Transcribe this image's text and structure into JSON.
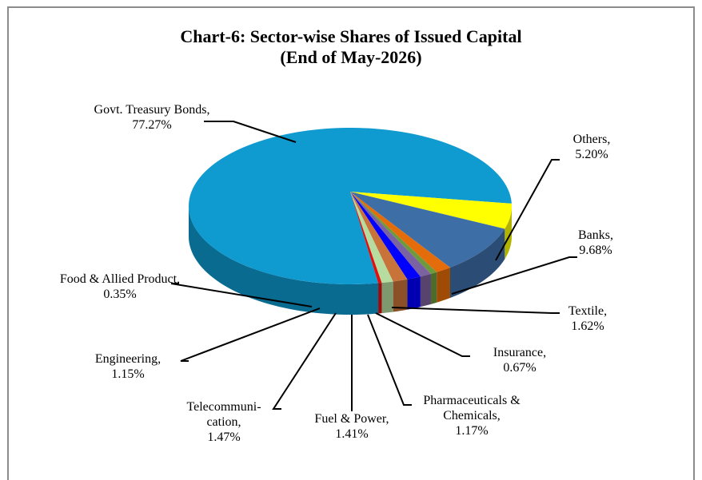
{
  "chart_data": {
    "type": "pie",
    "title": "Chart-6: Sector-wise Shares of Issued Capital",
    "subtitle": "(End of  May-2026)",
    "categories": [
      "Govt. Treasury Bonds,",
      "Others,",
      "Banks,",
      "Textile,",
      "Insurance,",
      "Pharmaceuticals & Chemicals,",
      "Fuel & Power,",
      "Telecommuni-cation,",
      "Engineering,",
      "Food & Allied Product,"
    ],
    "values": [
      77.27,
      5.2,
      9.68,
      1.62,
      0.67,
      1.17,
      1.41,
      1.47,
      1.15,
      0.35
    ],
    "value_labels": [
      "77.27%",
      "5.20%",
      "9.68%",
      "1.62%",
      "0.67%",
      "1.17%",
      "1.41%",
      "1.47%",
      "1.15%",
      "0.35%"
    ],
    "colors": [
      "#0f9ad0",
      "#ffff00",
      "#3e6ea6",
      "#e46c0a",
      "#6f9a3c",
      "#7b62a0",
      "#0000ff",
      "#c8733a",
      "#b7dca0",
      "#e01010"
    ]
  }
}
